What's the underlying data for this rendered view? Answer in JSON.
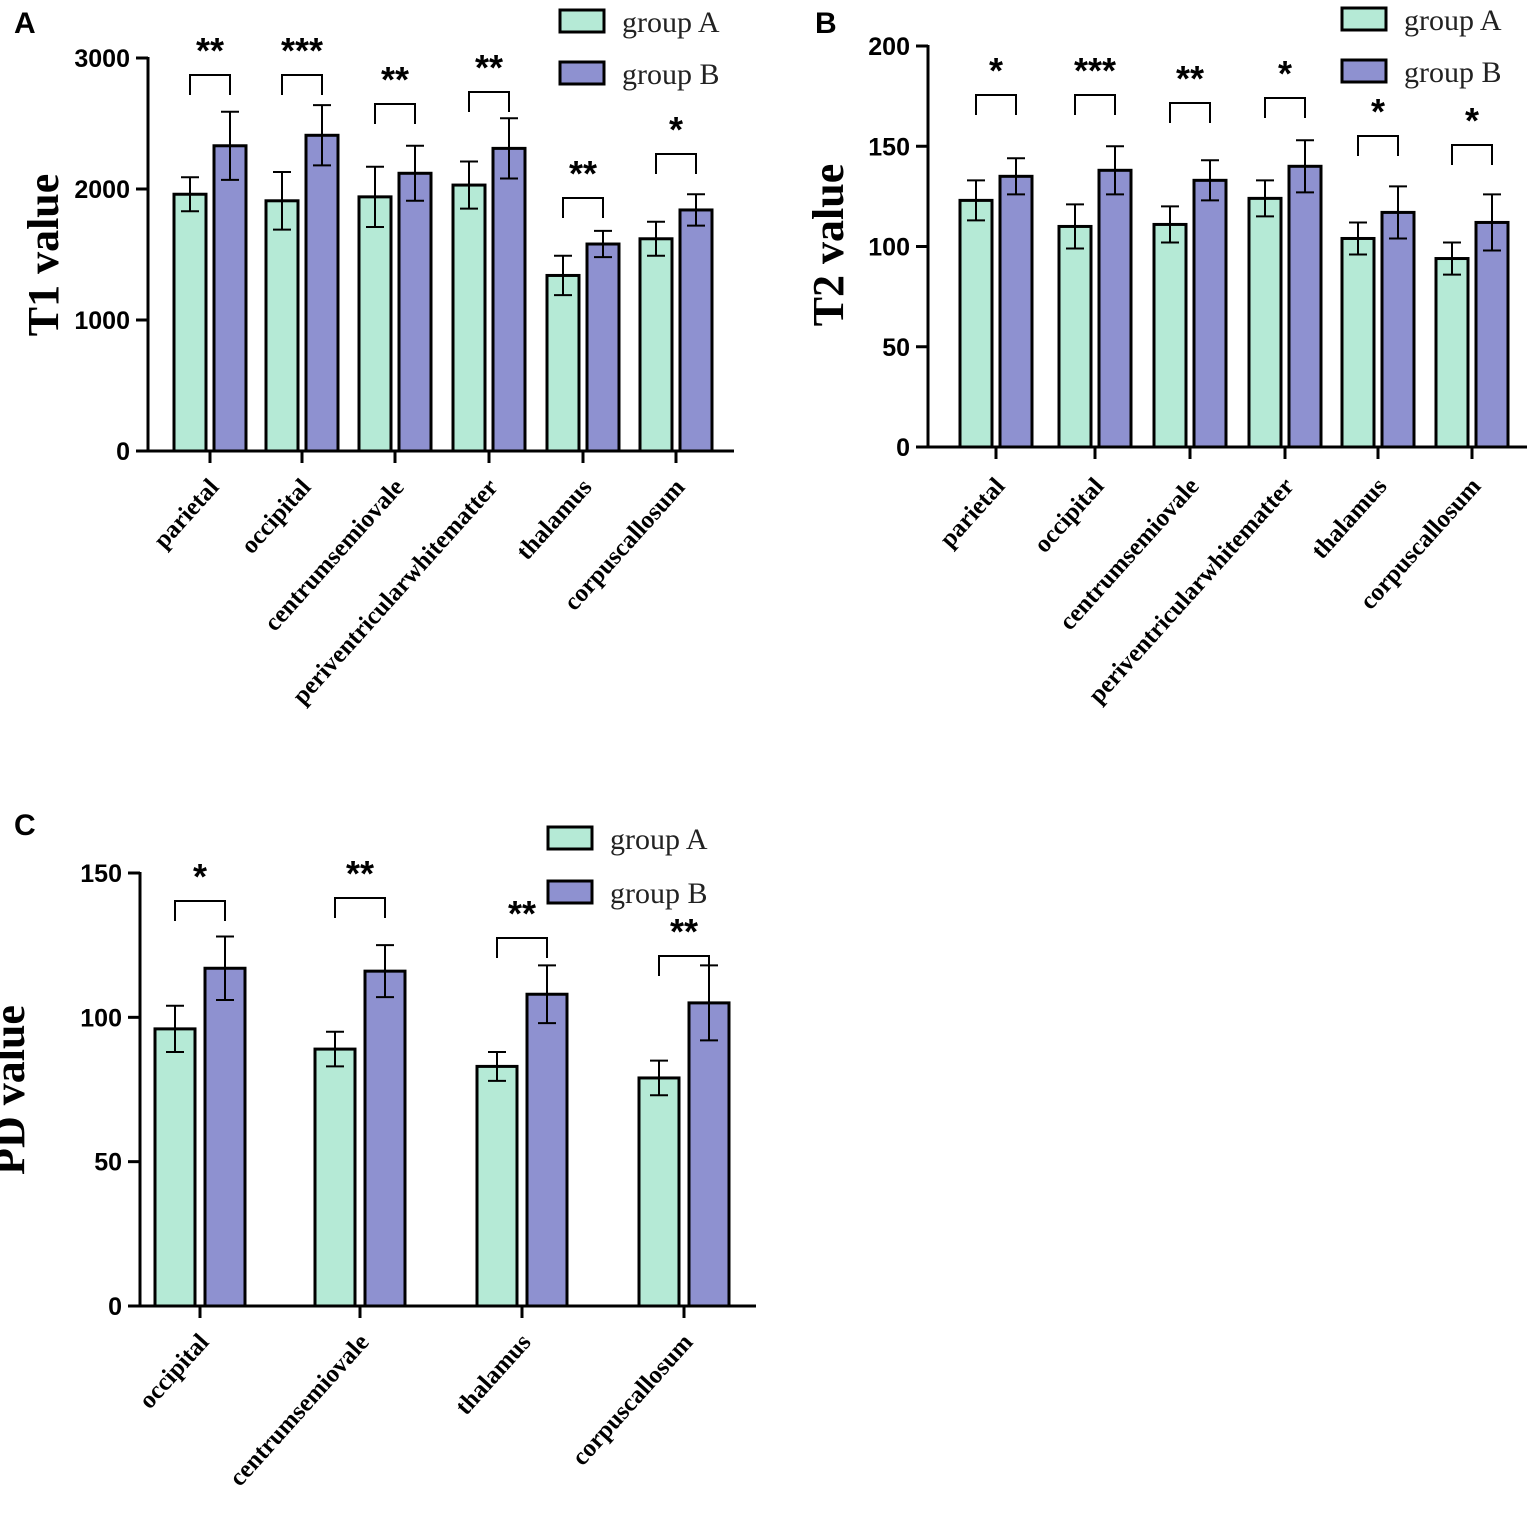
{
  "colors": {
    "groupA": "#b5ead6",
    "groupB": "#8e91d0",
    "stroke": "#000000"
  },
  "chart_data": [
    {
      "panel": "A",
      "type": "bar",
      "ylabel": "T1 value",
      "ylim": [
        0,
        3000
      ],
      "yticks": [
        0,
        1000,
        2000,
        3000
      ],
      "categories": [
        "parietal",
        "occipital",
        "centrumsemiovale",
        "periventricularwhitematter",
        "thalamus",
        "corpuscallosum"
      ],
      "series": [
        {
          "name": "group A",
          "values": [
            1960,
            1910,
            1940,
            2030,
            1340,
            1620
          ],
          "errors": [
            130,
            220,
            230,
            180,
            150,
            130
          ]
        },
        {
          "name": "group B",
          "values": [
            2330,
            2410,
            2120,
            2310,
            1580,
            1840
          ],
          "errors": [
            260,
            230,
            210,
            230,
            100,
            120
          ]
        }
      ],
      "significance": [
        "**",
        "***",
        "**",
        "**",
        "**",
        "*"
      ],
      "legend": [
        "group A",
        "group B"
      ]
    },
    {
      "panel": "B",
      "type": "bar",
      "ylabel": "T2 value",
      "ylim": [
        0,
        200
      ],
      "yticks": [
        0,
        50,
        100,
        150,
        200
      ],
      "categories": [
        "parietal",
        "occipital",
        "centrumsemiovale",
        "periventricularwhitematter",
        "thalamus",
        "corpuscallosum"
      ],
      "series": [
        {
          "name": "group A",
          "values": [
            123,
            110,
            111,
            124,
            104,
            94
          ],
          "errors": [
            10,
            11,
            9,
            9,
            8,
            8
          ]
        },
        {
          "name": "group B",
          "values": [
            135,
            138,
            133,
            140,
            117,
            112
          ],
          "errors": [
            9,
            12,
            10,
            13,
            13,
            14
          ]
        }
      ],
      "significance": [
        "*",
        "***",
        "**",
        "*",
        "*",
        "*"
      ],
      "legend": [
        "group A",
        "group B"
      ]
    },
    {
      "panel": "C",
      "type": "bar",
      "ylabel": "PD value",
      "ylim": [
        0,
        150
      ],
      "yticks": [
        0,
        50,
        100,
        150
      ],
      "categories": [
        "occipital",
        "centrumsemiovale",
        "thalamus",
        "corpuscallosum"
      ],
      "series": [
        {
          "name": "group A",
          "values": [
            96,
            89,
            83,
            79
          ],
          "errors": [
            8,
            6,
            5,
            6
          ]
        },
        {
          "name": "group B",
          "values": [
            117,
            116,
            108,
            105
          ],
          "errors": [
            11,
            9,
            10,
            13
          ]
        }
      ],
      "significance": [
        "*",
        "**",
        "**",
        "**"
      ],
      "legend": [
        "group A",
        "group B"
      ]
    }
  ]
}
